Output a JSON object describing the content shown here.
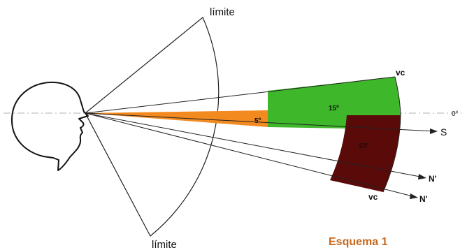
{
  "labels": {
    "limite_top": "límite",
    "limite_bottom": "límite",
    "vc_top": "vc",
    "vc_bottom": "vc",
    "zero": "0°",
    "s": "S",
    "n1": "N'",
    "n2": "N'",
    "deg5": "5º",
    "deg15": "15º",
    "deg20": "20º",
    "caption": "Esquema 1"
  },
  "colors": {
    "orange": "#f28a20",
    "green": "#3fb72a",
    "maroon": "#5a0a08",
    "caption": "#c8681e",
    "line": "#222222"
  }
}
